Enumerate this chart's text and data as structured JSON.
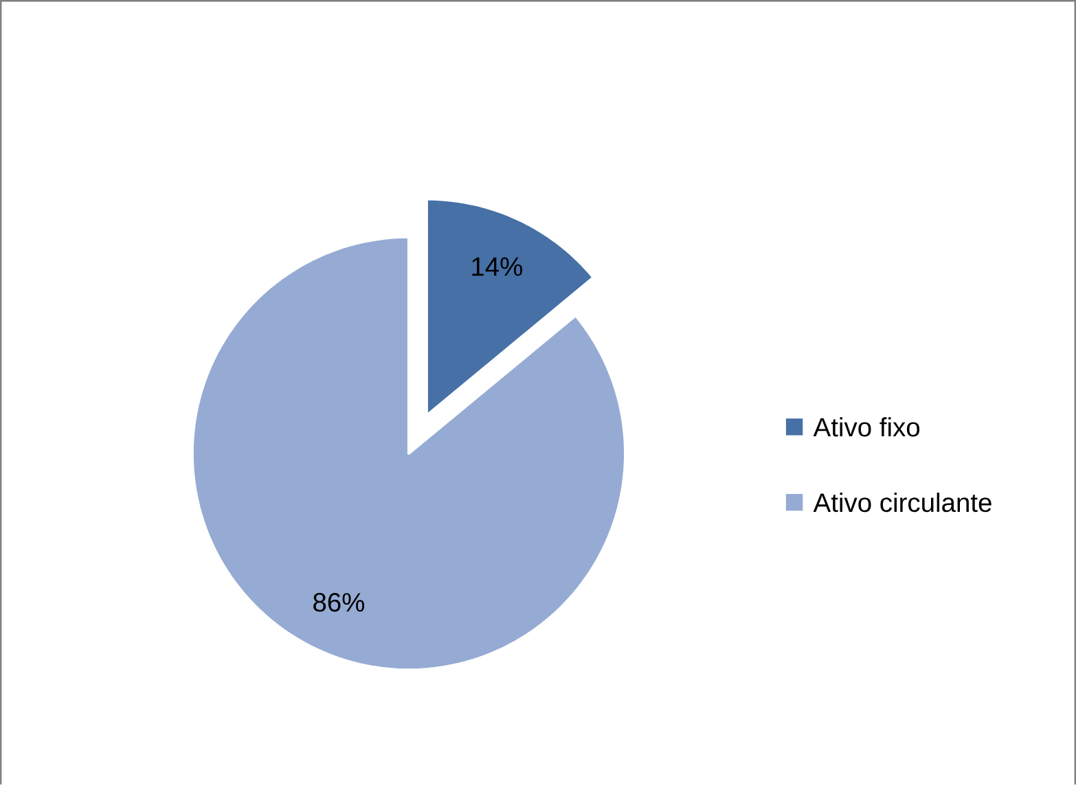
{
  "chart_data": {
    "type": "pie",
    "categories": [
      "Ativo fixo",
      "Ativo circulante"
    ],
    "values": [
      14,
      86
    ],
    "colors": [
      "#4670a6",
      "#95abd3"
    ],
    "value_labels": [
      "14%",
      "86%"
    ],
    "legend": "right"
  }
}
